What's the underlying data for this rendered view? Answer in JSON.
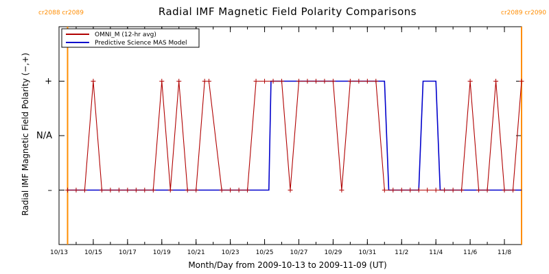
{
  "chart_data": {
    "type": "line",
    "title": "Radial IMF Magnetic Field Polarity Comparisons",
    "xlabel": "Month/Day from 2009-10-13 to 2009-11-09 (UT)",
    "ylabel": "Radial IMF Magnetic Field Polarity (−,+)",
    "xlim": [
      "2009-10-13",
      "2009-11-09"
    ],
    "ylim": [
      -2,
      2
    ],
    "x_ticks": [
      {
        "x": "2009-10-13",
        "label": "10/13"
      },
      {
        "x": "2009-10-15",
        "label": "10/15"
      },
      {
        "x": "2009-10-17",
        "label": "10/17"
      },
      {
        "x": "2009-10-19",
        "label": "10/19"
      },
      {
        "x": "2009-10-21",
        "label": "10/21"
      },
      {
        "x": "2009-10-23",
        "label": "10/23"
      },
      {
        "x": "2009-10-25",
        "label": "10/25"
      },
      {
        "x": "2009-10-27",
        "label": "10/27"
      },
      {
        "x": "2009-10-29",
        "label": "10/29"
      },
      {
        "x": "2009-10-31",
        "label": "10/31"
      },
      {
        "x": "2009-11-02",
        "label": "11/2"
      },
      {
        "x": "2009-11-04",
        "label": "11/4"
      },
      {
        "x": "2009-11-06",
        "label": "11/6"
      },
      {
        "x": "2009-11-08",
        "label": "11/8"
      }
    ],
    "y_ticks": [
      {
        "y": 1,
        "label": "+"
      },
      {
        "y": 0,
        "label": "N/A"
      },
      {
        "y": -1,
        "label": "–"
      }
    ],
    "legend_position": "top-left",
    "carrington_markers": [
      {
        "x": "2009-10-13 12:00",
        "left_label": "cr2088",
        "right_label": "cr2089",
        "color": "#ff8c00"
      },
      {
        "x": "2009-11-09 00:00",
        "left_label": "cr2089",
        "right_label": "cr2090",
        "color": "#ff8c00"
      }
    ],
    "series": [
      {
        "name": "OMNI_M (12-hr avg)",
        "color": "#b00000",
        "marker": "+",
        "points": [
          [
            "2009-10-13 12:00",
            -1
          ],
          [
            "2009-10-14 00:00",
            -1
          ],
          [
            "2009-10-14 12:00",
            -1
          ],
          [
            "2009-10-15 00:00",
            1
          ],
          [
            "2009-10-15 12:00",
            -1
          ],
          [
            "2009-10-16 00:00",
            -1
          ],
          [
            "2009-10-16 12:00",
            -1
          ],
          [
            "2009-10-17 00:00",
            -1
          ],
          [
            "2009-10-17 12:00",
            -1
          ],
          [
            "2009-10-18 00:00",
            -1
          ],
          [
            "2009-10-18 12:00",
            -1
          ],
          [
            "2009-10-19 00:00",
            1
          ],
          [
            "2009-10-19 12:00",
            -1
          ],
          [
            "2009-10-20 00:00",
            1
          ],
          [
            "2009-10-20 12:00",
            -1
          ],
          [
            "2009-10-21 00:00",
            -1
          ],
          [
            "2009-10-21 12:00",
            1
          ],
          [
            "2009-10-21 18:00",
            1
          ],
          [
            "2009-10-22 12:00",
            -1
          ],
          [
            "2009-10-23 00:00",
            -1
          ],
          [
            "2009-10-23 12:00",
            -1
          ],
          [
            "2009-10-24 00:00",
            -1
          ],
          [
            "2009-10-24 12:00",
            1
          ],
          [
            "2009-10-25 00:00",
            1
          ],
          [
            "2009-10-25 12:00",
            1
          ],
          [
            "2009-10-26 00:00",
            1
          ],
          [
            "2009-10-26 12:00",
            -1
          ],
          [
            "2009-10-27 00:00",
            1
          ],
          [
            "2009-10-27 12:00",
            1
          ],
          [
            "2009-10-28 00:00",
            1
          ],
          [
            "2009-10-28 12:00",
            1
          ],
          [
            "2009-10-29 00:00",
            1
          ],
          [
            "2009-10-29 12:00",
            -1
          ],
          [
            "2009-10-30 00:00",
            1
          ],
          [
            "2009-10-30 12:00",
            1
          ],
          [
            "2009-10-31 00:00",
            1
          ],
          [
            "2009-10-31 12:00",
            1
          ],
          [
            "2009-11-01 00:00",
            -1
          ],
          [
            "2009-11-01 12:00",
            -1
          ],
          [
            "2009-11-02 00:00",
            -1
          ],
          [
            "2009-11-02 12:00",
            -1
          ],
          [
            "2009-11-03 00:00",
            -1
          ],
          [
            "2009-11-03 12:00",
            -1
          ],
          [
            "2009-11-04 00:00",
            -1
          ],
          [
            "2009-11-04 12:00",
            -1
          ],
          [
            "2009-11-05 00:00",
            -1
          ],
          [
            "2009-11-05 12:00",
            -1
          ],
          [
            "2009-11-06 00:00",
            1
          ],
          [
            "2009-11-06 12:00",
            -1
          ],
          [
            "2009-11-07 00:00",
            -1
          ],
          [
            "2009-11-07 12:00",
            1
          ],
          [
            "2009-11-08 00:00",
            -1
          ],
          [
            "2009-11-08 12:00",
            -1
          ],
          [
            "2009-11-09 00:00",
            1
          ]
        ]
      },
      {
        "name": "Predictive Science MAS Model",
        "color": "#0000cc",
        "marker": "none",
        "points": [
          [
            "2009-10-13 12:00",
            -1
          ],
          [
            "2009-10-25 06:00",
            -1
          ],
          [
            "2009-10-25 09:00",
            1
          ],
          [
            "2009-11-01 00:00",
            1
          ],
          [
            "2009-11-01 06:00",
            -1
          ],
          [
            "2009-11-03 00:00",
            -1
          ],
          [
            "2009-11-03 06:00",
            1
          ],
          [
            "2009-11-04 00:00",
            1
          ],
          [
            "2009-11-04 06:00",
            -1
          ],
          [
            "2009-11-09 00:00",
            -1
          ]
        ]
      }
    ]
  }
}
